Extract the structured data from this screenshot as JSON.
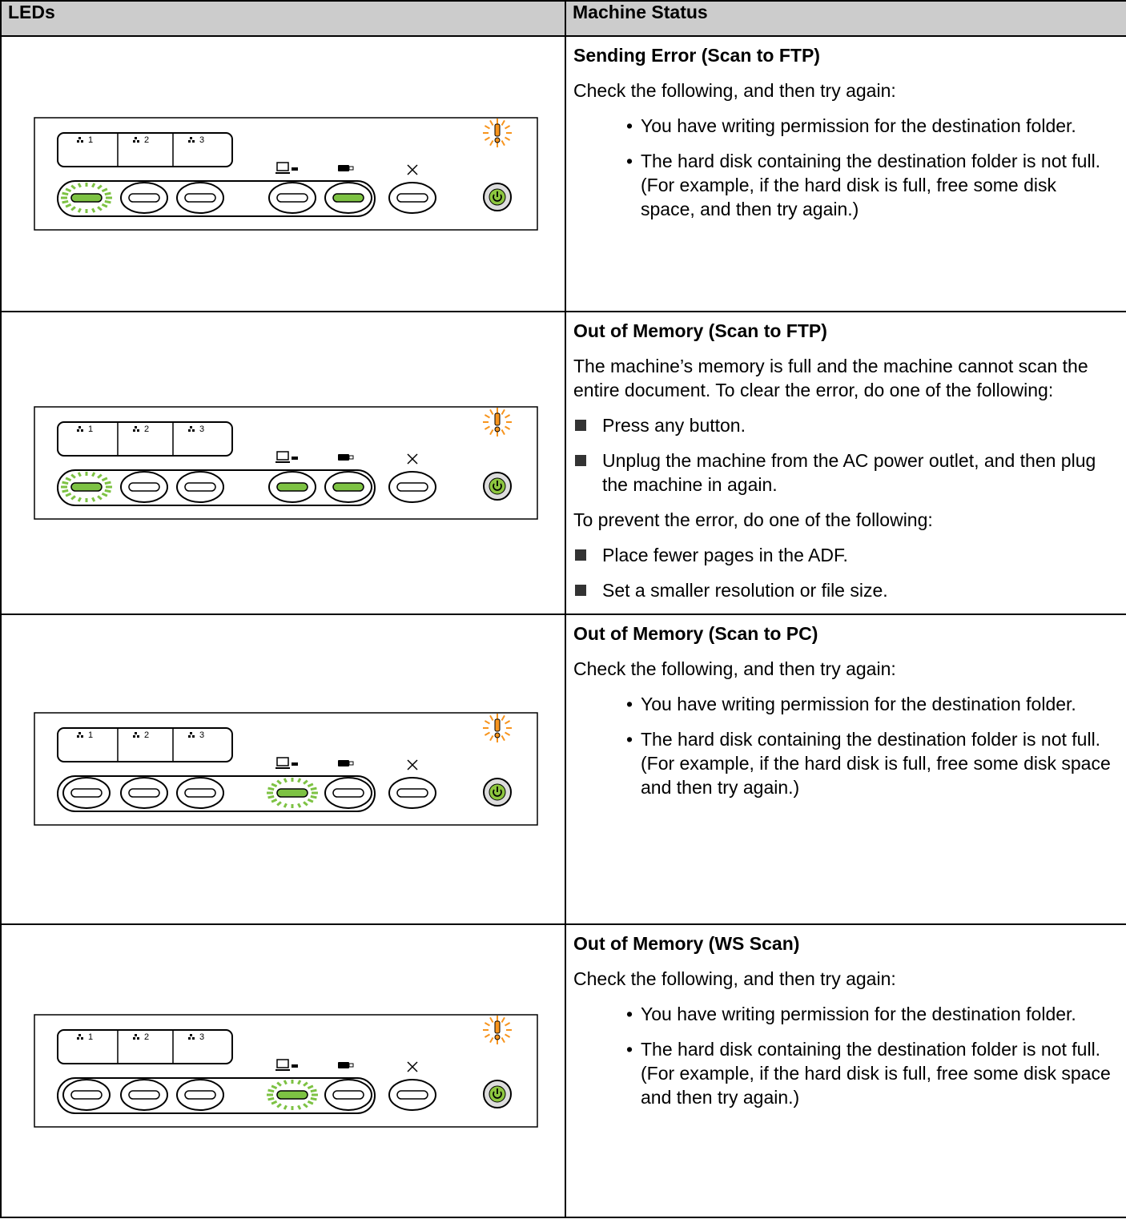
{
  "table": {
    "header": [
      "LEDs",
      "Machine Status"
    ],
    "panel_labels": [
      "1",
      "2",
      "3"
    ],
    "rows": [
      {
        "title": "Sending Error (Scan to FTP)",
        "items": [
          {
            "text": "Check the following, and then try again:"
          },
          {
            "bullets": [
              "You have writing permission for the destination folder.",
              "The hard disk containing the destination folder is not full. (For example, if the hard disk is full, free some disk space, and then try again.)"
            ]
          }
        ]
      },
      {
        "title": "Out of Memory (Scan to FTP)",
        "items": [
          {
            "text": "The machine’s memory is full and the machine cannot scan the entire document. To clear the error, do one of the following:"
          },
          {
            "squares": [
              "Press any button.",
              "Unplug the machine from the AC power outlet, and then plug the machine in again."
            ]
          },
          {
            "text": "To prevent the error, do one of the following:"
          },
          {
            "squares": [
              "Place fewer pages in the ADF.",
              "Set a smaller resolution or file size."
            ]
          }
        ]
      },
      {
        "title": "Out of Memory (Scan to PC)",
        "items": [
          {
            "text": "Check the following, and then try again:"
          },
          {
            "bullets": [
              "You have writing permission for the destination folder.",
              "The hard disk containing the destination folder is not full. (For example, if the hard disk is full, free some disk space and then try again.)"
            ]
          }
        ]
      },
      {
        "title": "Out of Memory (WS Scan)",
        "items": [
          {
            "text": "Check the following, and then try again:"
          },
          {
            "bullets": [
              "You have writing permission for the destination folder.",
              "The hard disk containing the destination folder is not full. (For example, if the hard disk is full, free some disk space and then try again.)"
            ]
          }
        ]
      }
    ]
  }
}
